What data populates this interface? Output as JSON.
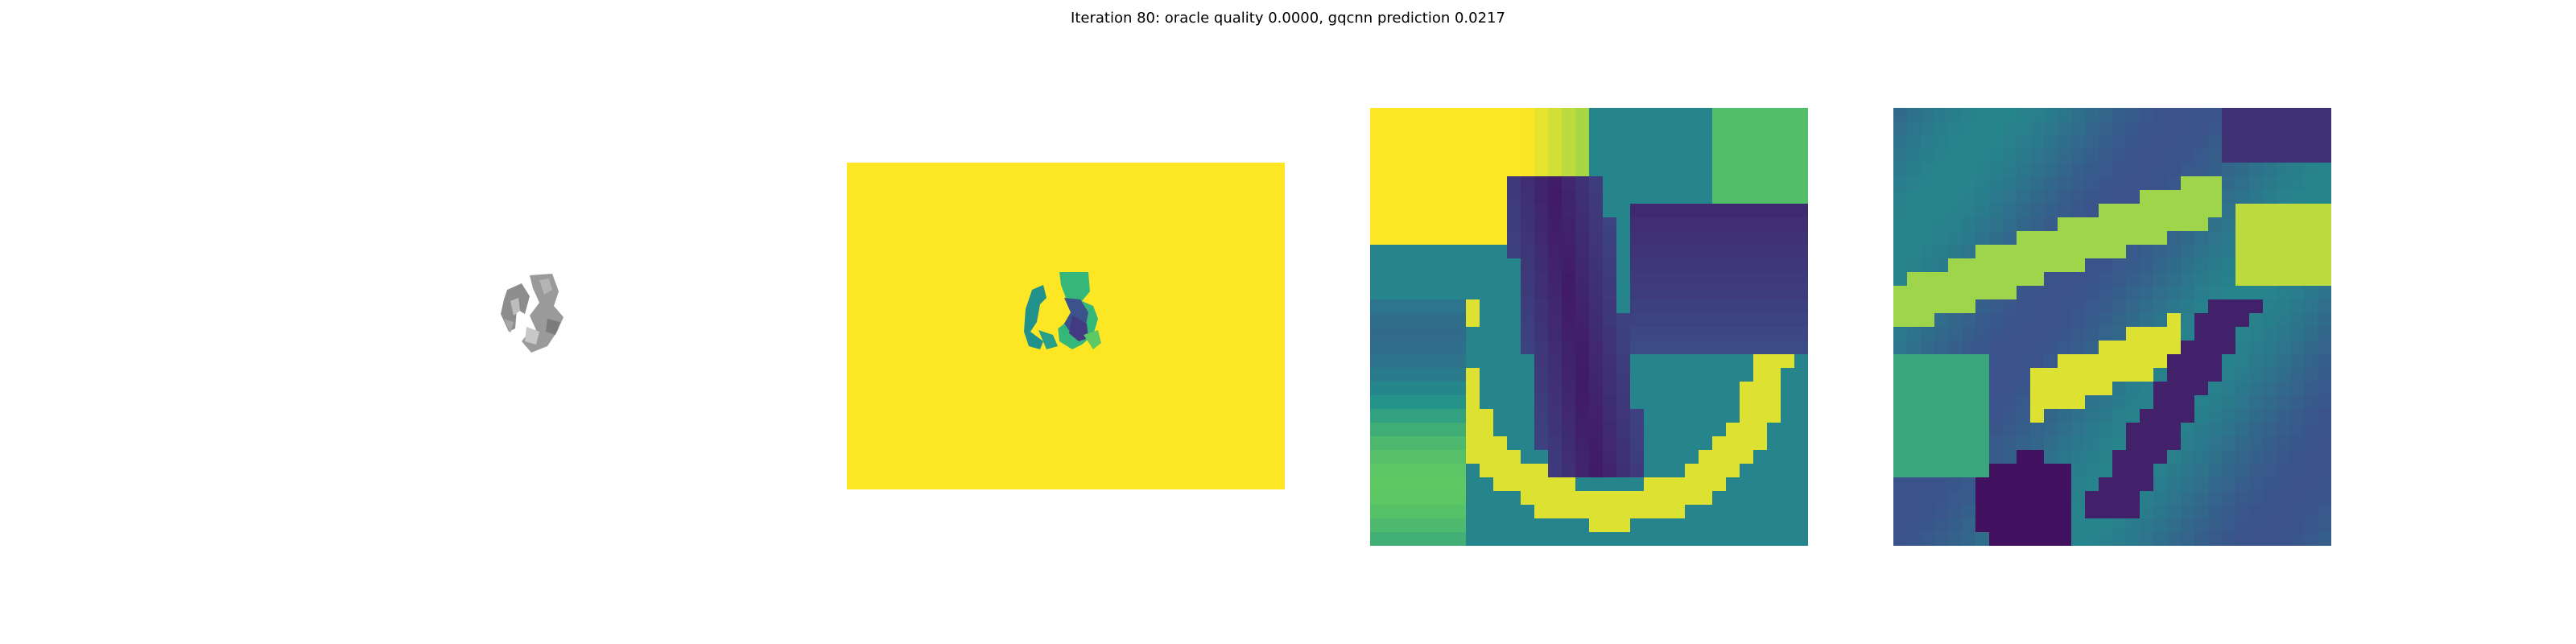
{
  "figure": {
    "title": "Iteration 80: oracle quality 0.0000, gqcnn prediction 0.0217"
  },
  "colormap": {
    "name": "viridis",
    "stops": [
      "#440154",
      "#3b528b",
      "#21918c",
      "#5ec962",
      "#fde725"
    ]
  },
  "panels": [
    {
      "name": "rendered-object",
      "kind": "object-render"
    },
    {
      "name": "depth-image",
      "kind": "depth-image"
    },
    {
      "name": "crop-original",
      "kind": "depth-crop"
    },
    {
      "name": "crop-transformed",
      "kind": "depth-crop"
    }
  ]
}
